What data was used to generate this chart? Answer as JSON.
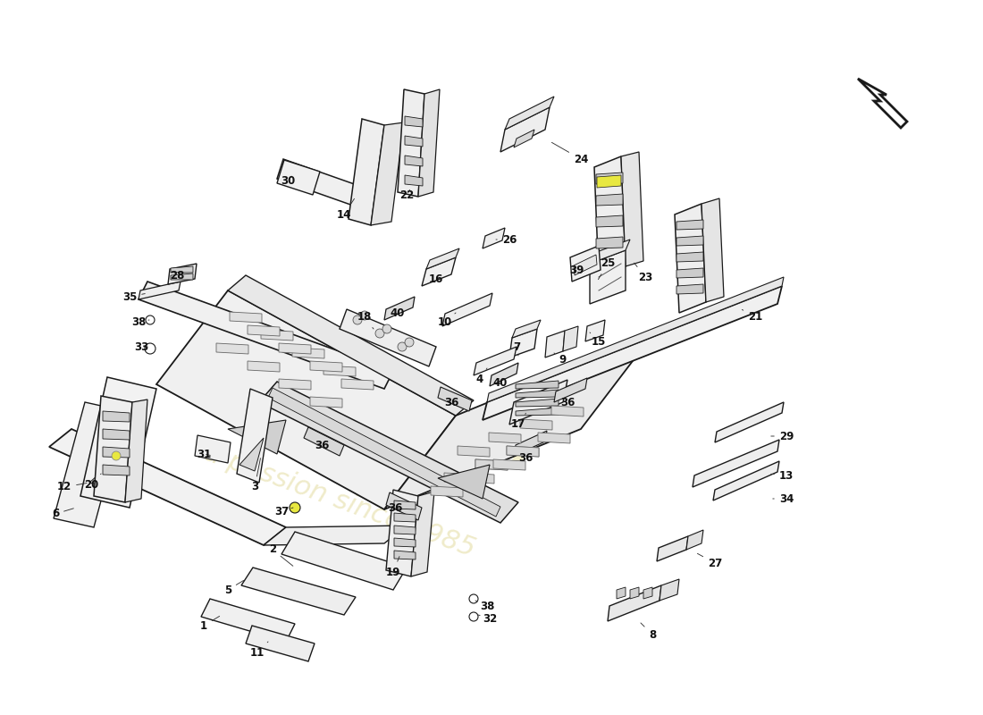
{
  "bg_color": "#ffffff",
  "lc": "#1a1a1a",
  "wm1": "#d4c85a",
  "wm2": "#c8b840"
}
